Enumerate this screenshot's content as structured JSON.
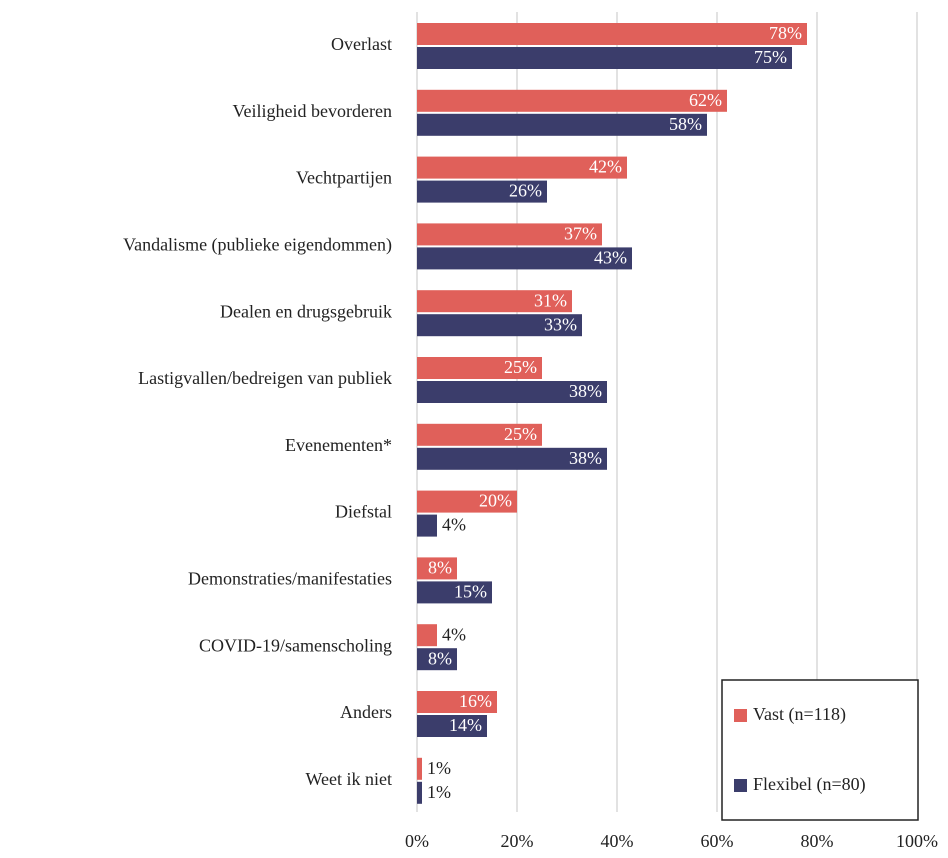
{
  "chart_data": {
    "type": "bar",
    "orientation": "horizontal",
    "categories": [
      "Overlast",
      "Veiligheid bevorderen",
      "Vechtpartijen",
      "Vandalisme (publieke eigendommen)",
      "Dealen en drugsgebruik",
      "Lastigvallen/bedreigen van publiek",
      "Evenementen*",
      "Diefstal",
      "Demonstraties/manifestaties",
      "COVID-19/samenscholing",
      "Anders",
      "Weet ik niet"
    ],
    "series": [
      {
        "name": "Vast (n=118)",
        "color": "#e0605a",
        "values": [
          78,
          62,
          42,
          37,
          31,
          25,
          25,
          20,
          8,
          4,
          16,
          1
        ],
        "value_labels": [
          "78%",
          "62%",
          "42%",
          "37%",
          "31%",
          "25%",
          "25%",
          "20%",
          "8%",
          "4%",
          "16%",
          "1%"
        ]
      },
      {
        "name": "Flexibel (n=80)",
        "color": "#3b3d6b",
        "values": [
          75,
          58,
          26,
          43,
          33,
          38,
          38,
          4,
          15,
          8,
          14,
          1
        ],
        "value_labels": [
          "75%",
          "58%",
          "26%",
          "43%",
          "33%",
          "38%",
          "38%",
          "4%",
          "15%",
          "8%",
          "14%",
          "1%"
        ]
      }
    ],
    "xlim": [
      0,
      100
    ],
    "xticks": [
      {
        "value": 0,
        "label": "0%"
      },
      {
        "value": 20,
        "label": "20%"
      },
      {
        "value": 40,
        "label": "40%"
      },
      {
        "value": 60,
        "label": "60%"
      },
      {
        "value": 80,
        "label": "80%"
      },
      {
        "value": 100,
        "label": "100%"
      }
    ],
    "grid": true,
    "legend": "bottom-right"
  }
}
